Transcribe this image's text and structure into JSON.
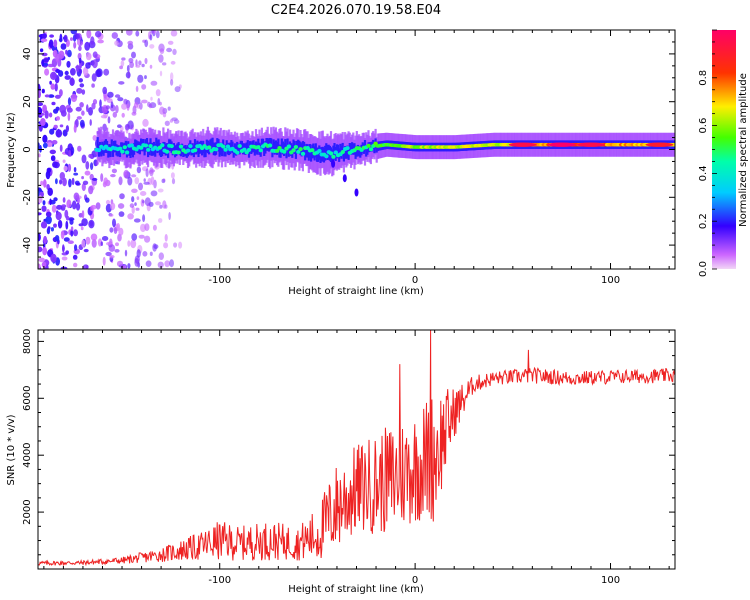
{
  "title": "C2E4.2026.070.19.58.E04",
  "chart_data": [
    {
      "type": "heatmap",
      "xlabel": "Height of straight line (km)",
      "ylabel": "Frequency (Hz)",
      "xlim": [
        -193,
        133
      ],
      "ylim": [
        -50,
        50
      ],
      "x_ticks": [
        -100,
        0,
        100
      ],
      "y_ticks": [
        -40,
        -20,
        0,
        20,
        40
      ],
      "colorbar": {
        "label": "Normalized spectral amplitude",
        "range": [
          0.0,
          1.0
        ],
        "ticks": [
          0.0,
          0.2,
          0.4,
          0.6,
          0.8
        ],
        "colormap": [
          "#ff00ff",
          "#0000ff",
          "#00ffff",
          "#00ff00",
          "#ffff00",
          "#ff0000",
          "#ff00aa"
        ]
      },
      "noise_region_x": [
        -193,
        -120
      ],
      "ridge": [
        {
          "x": -163,
          "y": 1,
          "width": 6,
          "amp": 0.35
        },
        {
          "x": -150,
          "y": 0,
          "width": 5,
          "amp": 0.4
        },
        {
          "x": -135,
          "y": 1,
          "width": 6,
          "amp": 0.4
        },
        {
          "x": -120,
          "y": 0,
          "width": 5,
          "amp": 0.42
        },
        {
          "x": -105,
          "y": 1,
          "width": 6,
          "amp": 0.42
        },
        {
          "x": -90,
          "y": 0,
          "width": 5,
          "amp": 0.42
        },
        {
          "x": -75,
          "y": 1,
          "width": 6,
          "amp": 0.45
        },
        {
          "x": -60,
          "y": 0,
          "width": 6,
          "amp": 0.45
        },
        {
          "x": -45,
          "y": -2,
          "width": 7,
          "amp": 0.4
        },
        {
          "x": -30,
          "y": 0,
          "width": 5,
          "amp": 0.45
        },
        {
          "x": -15,
          "y": 2,
          "width": 4,
          "amp": 0.55
        },
        {
          "x": 0,
          "y": 1,
          "width": 4,
          "amp": 0.6
        },
        {
          "x": 20,
          "y": 1,
          "width": 4,
          "amp": 0.65
        },
        {
          "x": 40,
          "y": 2,
          "width": 4,
          "amp": 0.62
        },
        {
          "x": 60,
          "y": 2,
          "width": 4,
          "amp": 0.7
        },
        {
          "x": 80,
          "y": 2,
          "width": 4,
          "amp": 0.85
        },
        {
          "x": 100,
          "y": 2,
          "width": 4,
          "amp": 0.75
        },
        {
          "x": 120,
          "y": 2,
          "width": 4,
          "amp": 0.7
        },
        {
          "x": 133,
          "y": 2,
          "width": 4,
          "amp": 0.7
        }
      ],
      "hot_spots": [
        {
          "x": 55,
          "y": 2,
          "amp": 0.95
        },
        {
          "x": 75,
          "y": 2,
          "amp": 1.0
        },
        {
          "x": 90,
          "y": 2,
          "amp": 0.95
        },
        {
          "x": 125,
          "y": 2,
          "amp": 0.9
        }
      ],
      "tail": [
        {
          "x": -42,
          "y": -6
        },
        {
          "x": -36,
          "y": -12
        },
        {
          "x": -30,
          "y": -18
        }
      ]
    },
    {
      "type": "line",
      "xlabel": "Height of straight line (km)",
      "ylabel": "SNR (10 * v/v)",
      "xlim": [
        -193,
        133
      ],
      "ylim": [
        0,
        8400
      ],
      "x_ticks": [
        -100,
        0,
        100
      ],
      "y_ticks": [
        2000,
        4000,
        6000,
        8000
      ],
      "color": "#ee2222",
      "trend": {
        "x": [
          -193,
          -170,
          -150,
          -130,
          -110,
          -100,
          -90,
          -75,
          -60,
          -50,
          -40,
          -30,
          -20,
          -10,
          0,
          10,
          20,
          30,
          40,
          60,
          80,
          100,
          133
        ],
        "mean": [
          200,
          220,
          300,
          500,
          800,
          1000,
          900,
          1000,
          900,
          1200,
          2200,
          2800,
          3000,
          3200,
          3600,
          4000,
          5500,
          6500,
          6700,
          6800,
          6700,
          6750,
          6800
        ],
        "amplitude": [
          80,
          80,
          120,
          250,
          500,
          700,
          600,
          700,
          600,
          1000,
          1600,
          1600,
          1800,
          2000,
          2000,
          2400,
          900,
          300,
          250,
          280,
          250,
          250,
          250
        ]
      },
      "peaks": [
        {
          "x": 8,
          "y": 8400
        },
        {
          "x": -8,
          "y": 7200
        },
        {
          "x": 58,
          "y": 7700
        }
      ]
    }
  ]
}
